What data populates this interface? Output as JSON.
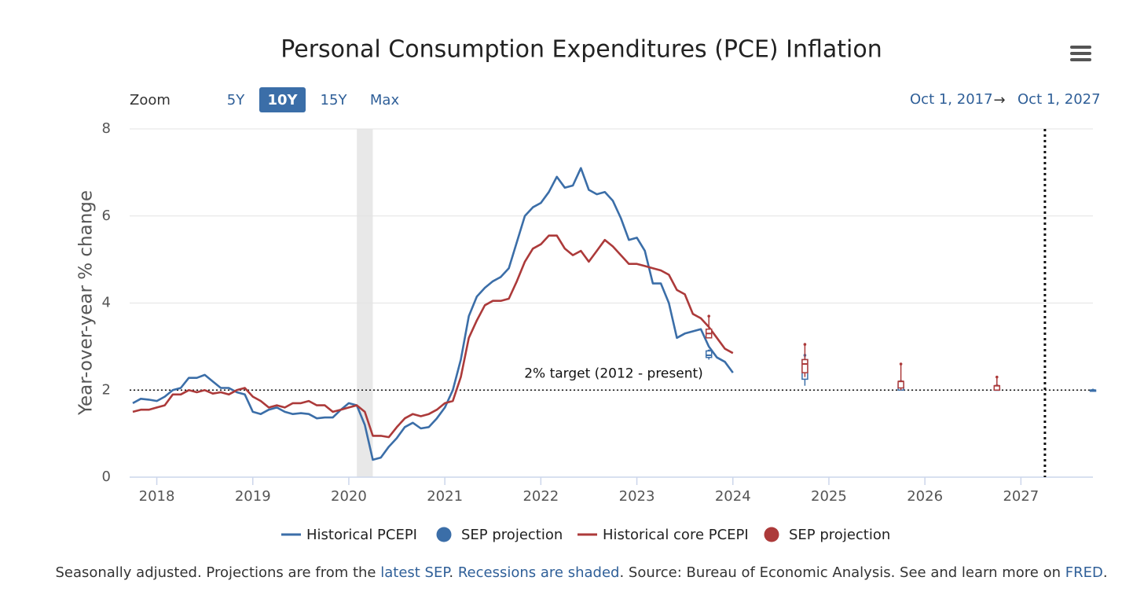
{
  "chart_data": {
    "type": "line",
    "title": "Personal Consumption Expenditures (PCE) Inflation",
    "zoom": {
      "label": "Zoom",
      "options": [
        "5Y",
        "10Y",
        "15Y",
        "Max"
      ],
      "selected": 1
    },
    "range": {
      "from": "Oct 1, 2017",
      "arrow": "→",
      "to": "Oct 1, 2027"
    },
    "y_label": "Year-over-year % change",
    "ylim": [
      0,
      8
    ],
    "yticks": [
      0,
      2,
      4,
      6,
      8
    ],
    "grid": true,
    "xlim": [
      "2017-10",
      "2027-10"
    ],
    "xticks": [
      {
        "value": "2018-01",
        "label": "2018"
      },
      {
        "value": "2019-01",
        "label": "2019"
      },
      {
        "value": "2020-01",
        "label": "2020"
      },
      {
        "value": "2021-01",
        "label": "2021"
      },
      {
        "value": "2022-01",
        "label": "2022"
      },
      {
        "value": "2023-01",
        "label": "2023"
      },
      {
        "value": "2024-01",
        "label": "2024"
      },
      {
        "value": "2025-01",
        "label": "2025"
      },
      {
        "value": "2026-01",
        "label": "2026"
      },
      {
        "value": "2027-01",
        "label": "2027"
      }
    ],
    "recessions": [
      {
        "start": "2020-02",
        "end": "2020-04"
      }
    ],
    "target": {
      "value": 2,
      "label": "2% target (2012 - present)"
    },
    "marker_line_x": "2027-04",
    "x": [
      "2017-10",
      "2017-11",
      "2017-12",
      "2018-01",
      "2018-02",
      "2018-03",
      "2018-04",
      "2018-05",
      "2018-06",
      "2018-07",
      "2018-08",
      "2018-09",
      "2018-10",
      "2018-11",
      "2018-12",
      "2019-01",
      "2019-02",
      "2019-03",
      "2019-04",
      "2019-05",
      "2019-06",
      "2019-07",
      "2019-08",
      "2019-09",
      "2019-10",
      "2019-11",
      "2019-12",
      "2020-01",
      "2020-02",
      "2020-03",
      "2020-04",
      "2020-05",
      "2020-06",
      "2020-07",
      "2020-08",
      "2020-09",
      "2020-10",
      "2020-11",
      "2020-12",
      "2021-01",
      "2021-02",
      "2021-03",
      "2021-04",
      "2021-05",
      "2021-06",
      "2021-07",
      "2021-08",
      "2021-09",
      "2021-10",
      "2021-11",
      "2021-12",
      "2022-01",
      "2022-02",
      "2022-03",
      "2022-04",
      "2022-05",
      "2022-06",
      "2022-07",
      "2022-08",
      "2022-09",
      "2022-10",
      "2022-11",
      "2022-12",
      "2023-01",
      "2023-02",
      "2023-03",
      "2023-04",
      "2023-05",
      "2023-06",
      "2023-07",
      "2023-08",
      "2023-09",
      "2023-10",
      "2023-11",
      "2023-12",
      "2024-01"
    ],
    "series": [
      {
        "name": "Historical PCEPI",
        "type": "line",
        "color": "#3b6ea8",
        "values": [
          1.7,
          1.8,
          1.78,
          1.75,
          1.85,
          2.0,
          2.05,
          2.28,
          2.28,
          2.35,
          2.2,
          2.05,
          2.05,
          1.95,
          1.9,
          1.5,
          1.45,
          1.55,
          1.6,
          1.5,
          1.45,
          1.47,
          1.45,
          1.35,
          1.37,
          1.37,
          1.55,
          1.7,
          1.65,
          1.2,
          0.4,
          0.45,
          0.7,
          0.9,
          1.15,
          1.25,
          1.12,
          1.15,
          1.35,
          1.6,
          2.0,
          2.7,
          3.7,
          4.15,
          4.35,
          4.5,
          4.6,
          4.8,
          5.4,
          6.0,
          6.2,
          6.3,
          6.55,
          6.9,
          6.65,
          6.7,
          7.1,
          6.6,
          6.5,
          6.55,
          6.35,
          5.95,
          5.45,
          5.5,
          5.2,
          4.45,
          4.45,
          4.0,
          3.2,
          3.3,
          3.35,
          3.4,
          3.0,
          2.75,
          2.65,
          2.4
        ]
      },
      {
        "name": "SEP projection",
        "type": "boxplot",
        "color": "#3b6ea8",
        "x": [
          "2023-10",
          "2024-10",
          "2025-10",
          "2026-10",
          "2027-10"
        ],
        "low": [
          2.7,
          2.1,
          2.0,
          2.0,
          2.0
        ],
        "q1": [
          2.75,
          2.25,
          2.0,
          2.0,
          2.0
        ],
        "median": [
          2.8,
          2.5,
          2.1,
          2.0,
          2.0
        ],
        "q3": [
          2.9,
          2.7,
          2.15,
          2.05,
          2.0
        ],
        "high": [
          2.9,
          2.8,
          2.2,
          2.1,
          2.0
        ]
      },
      {
        "name": "Historical core PCEPI",
        "type": "line",
        "color": "#ac3a3a",
        "values": [
          1.5,
          1.55,
          1.55,
          1.6,
          1.65,
          1.9,
          1.9,
          2.0,
          1.95,
          2.0,
          1.92,
          1.95,
          1.9,
          2.0,
          2.05,
          1.85,
          1.75,
          1.6,
          1.65,
          1.6,
          1.7,
          1.7,
          1.75,
          1.65,
          1.65,
          1.5,
          1.55,
          1.6,
          1.65,
          1.5,
          0.95,
          0.95,
          0.92,
          1.15,
          1.35,
          1.45,
          1.4,
          1.45,
          1.55,
          1.7,
          1.75,
          2.3,
          3.2,
          3.6,
          3.95,
          4.05,
          4.05,
          4.1,
          4.5,
          4.95,
          5.25,
          5.35,
          5.55,
          5.55,
          5.25,
          5.1,
          5.2,
          4.95,
          5.2,
          5.45,
          5.3,
          5.1,
          4.9,
          4.9,
          4.85,
          4.8,
          4.75,
          4.65,
          4.3,
          4.2,
          3.75,
          3.65,
          3.45,
          3.2,
          2.95,
          2.85
        ]
      },
      {
        "name": "SEP projection",
        "type": "boxplot",
        "color": "#ac3a3a",
        "x": [
          "2023-10",
          "2024-10",
          "2025-10",
          "2026-10"
        ],
        "low": [
          3.2,
          2.3,
          2.0,
          2.0
        ],
        "q1": [
          3.2,
          2.4,
          2.05,
          2.0
        ],
        "median": [
          3.3,
          2.6,
          2.2,
          2.1
        ],
        "q3": [
          3.4,
          2.7,
          2.2,
          2.1
        ],
        "high": [
          3.7,
          3.05,
          2.6,
          2.3
        ]
      }
    ],
    "footer": [
      {
        "text": "Seasonally adjusted. Projections are from the "
      },
      {
        "text": "latest SEP",
        "link": true
      },
      {
        "text": ". "
      },
      {
        "text": "Recessions are shaded",
        "link": true
      },
      {
        "text": ". Source: Bureau of Economic Analysis. See and learn more on "
      },
      {
        "text": "FRED",
        "link": true
      },
      {
        "text": "."
      }
    ]
  }
}
